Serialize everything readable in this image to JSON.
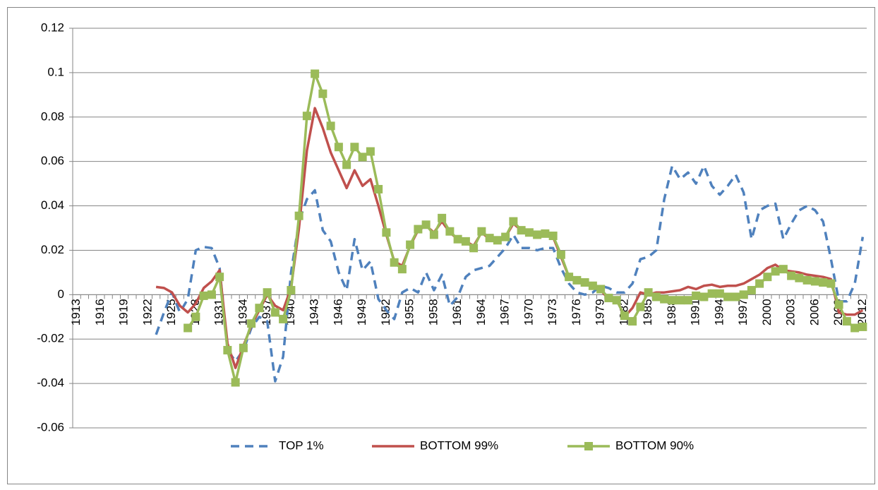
{
  "chart_data": {
    "type": "line",
    "categories": [
      "1913",
      null,
      null,
      "1916",
      null,
      null,
      "1919",
      null,
      null,
      "1922",
      null,
      null,
      "1925",
      null,
      null,
      "1928",
      null,
      null,
      "1931",
      null,
      null,
      "1934",
      null,
      null,
      "1937",
      null,
      null,
      "1940",
      null,
      null,
      "1943",
      null,
      null,
      "1946",
      null,
      null,
      "1949",
      null,
      null,
      "1952",
      null,
      null,
      "1955",
      null,
      null,
      "1958",
      null,
      null,
      "1961",
      null,
      null,
      "1964",
      null,
      null,
      "1967",
      null,
      null,
      "1970",
      null,
      null,
      "1973",
      null,
      null,
      "1976",
      null,
      null,
      "1979",
      null,
      null,
      "1982",
      null,
      null,
      "1985",
      null,
      null,
      "1988",
      null,
      null,
      "1991",
      null,
      null,
      "1994",
      null,
      null,
      "1997",
      null,
      null,
      "2000",
      null,
      null,
      "2003",
      null,
      null,
      "2006",
      null,
      null,
      "2009",
      null,
      null,
      "2012"
    ],
    "series": [
      {
        "name": "TOP 1%",
        "color": "#4f81bd",
        "line_style": "dashed",
        "marker": "none",
        "values": [
          null,
          null,
          null,
          null,
          null,
          null,
          null,
          null,
          null,
          null,
          -0.018,
          -0.008,
          0.001,
          -0.008,
          -0.002,
          0.02,
          0.0215,
          0.021,
          0.012,
          -0.025,
          -0.03,
          -0.025,
          -0.015,
          -0.01,
          -0.012,
          -0.039,
          -0.028,
          0.01,
          0.033,
          0.043,
          0.047,
          0.029,
          0.024,
          0.01,
          0.002,
          0.025,
          0.011,
          0.015,
          -0.002,
          -0.007,
          -0.011,
          0.001,
          0.003,
          0.001,
          0.01,
          0.002,
          0.009,
          -0.005,
          -0.001,
          0.008,
          0.011,
          0.012,
          0.013,
          0.017,
          0.021,
          0.027,
          0.021,
          0.021,
          0.02,
          0.021,
          0.021,
          0.012,
          0.005,
          0.001,
          0,
          0.001,
          0.004,
          0.003,
          0.001,
          0.001,
          0.005,
          0.016,
          0.017,
          0.02,
          0.043,
          0.058,
          0.052,
          0.055,
          0.05,
          0.058,
          0.049,
          0.045,
          0.049,
          0.054,
          0.046,
          0.025,
          0.038,
          0.04,
          0.041,
          0.025,
          0.032,
          0.038,
          0.04,
          0.038,
          0.033,
          0.016,
          -0.003,
          -0.003,
          0.005,
          0.026
        ]
      },
      {
        "name": "BOTTOM 99%",
        "color": "#c0504d",
        "line_style": "solid",
        "marker": "none",
        "values": [
          null,
          null,
          null,
          null,
          null,
          null,
          null,
          null,
          null,
          null,
          0.0035,
          0.003,
          0.001,
          -0.005,
          -0.008,
          -0.004,
          0.003,
          0.006,
          0.011,
          -0.022,
          -0.033,
          -0.023,
          -0.014,
          -0.007,
          0,
          -0.005,
          -0.007,
          0.003,
          0.03,
          0.065,
          0.084,
          0.075,
          0.064,
          0.056,
          0.048,
          0.056,
          0.049,
          0.052,
          0.04,
          0.027,
          0.015,
          0.013,
          0.022,
          0.029,
          0.031,
          0.028,
          0.033,
          0.028,
          0.025,
          0.024,
          0.022,
          0.028,
          0.025,
          0.024,
          0.026,
          0.032,
          0.029,
          0.028,
          0.027,
          0.027,
          0.026,
          0.017,
          0.008,
          0.007,
          0.005,
          0.004,
          0.002,
          -0.002,
          -0.002,
          -0.01,
          -0.006,
          0.001,
          0,
          0.001,
          0.001,
          0.0015,
          0.002,
          0.0035,
          0.0025,
          0.004,
          0.0045,
          0.0035,
          0.004,
          0.004,
          0.005,
          0.007,
          0.009,
          0.012,
          0.0135,
          0.011,
          0.0105,
          0.01,
          0.009,
          0.0085,
          0.008,
          0.007,
          -0.008,
          -0.009,
          -0.009,
          -0.007
        ]
      },
      {
        "name": "BOTTOM 90%",
        "color": "#9bbb59",
        "line_style": "solid",
        "marker": "square",
        "values": [
          null,
          null,
          null,
          null,
          null,
          null,
          null,
          null,
          null,
          null,
          null,
          null,
          null,
          null,
          -0.015,
          -0.01,
          -0.0005,
          0,
          0.008,
          -0.025,
          -0.0395,
          -0.024,
          -0.013,
          -0.006,
          0.001,
          -0.008,
          -0.011,
          0.002,
          0.0355,
          0.0805,
          0.0995,
          0.0905,
          0.076,
          0.0665,
          0.0585,
          0.0665,
          0.062,
          0.0645,
          0.0475,
          0.028,
          0.0145,
          0.0115,
          0.0225,
          0.0295,
          0.0315,
          0.027,
          0.0345,
          0.0285,
          0.025,
          0.024,
          0.021,
          0.0285,
          0.0255,
          0.0245,
          0.026,
          0.033,
          0.029,
          0.028,
          0.027,
          0.0275,
          0.0265,
          0.018,
          0.008,
          0.0065,
          0.0055,
          0.004,
          0.0025,
          -0.0015,
          -0.0025,
          -0.0095,
          -0.012,
          -0.0055,
          0.001,
          -0.001,
          -0.002,
          -0.0025,
          -0.0025,
          -0.0025,
          -0.0005,
          -0.001,
          0.0005,
          0.0005,
          -0.001,
          -0.001,
          0,
          0.002,
          0.005,
          0.008,
          0.0105,
          0.0115,
          0.0085,
          0.0075,
          0.0065,
          0.006,
          0.0055,
          0.005,
          -0.0045,
          -0.012,
          -0.015,
          -0.0145
        ]
      }
    ],
    "ylim": [
      -0.06,
      0.12
    ],
    "yticks": [
      -0.06,
      -0.04,
      -0.02,
      0,
      0.02,
      0.04,
      0.06,
      0.08,
      0.1,
      0.12
    ],
    "grid": true,
    "legend": "bottom"
  }
}
